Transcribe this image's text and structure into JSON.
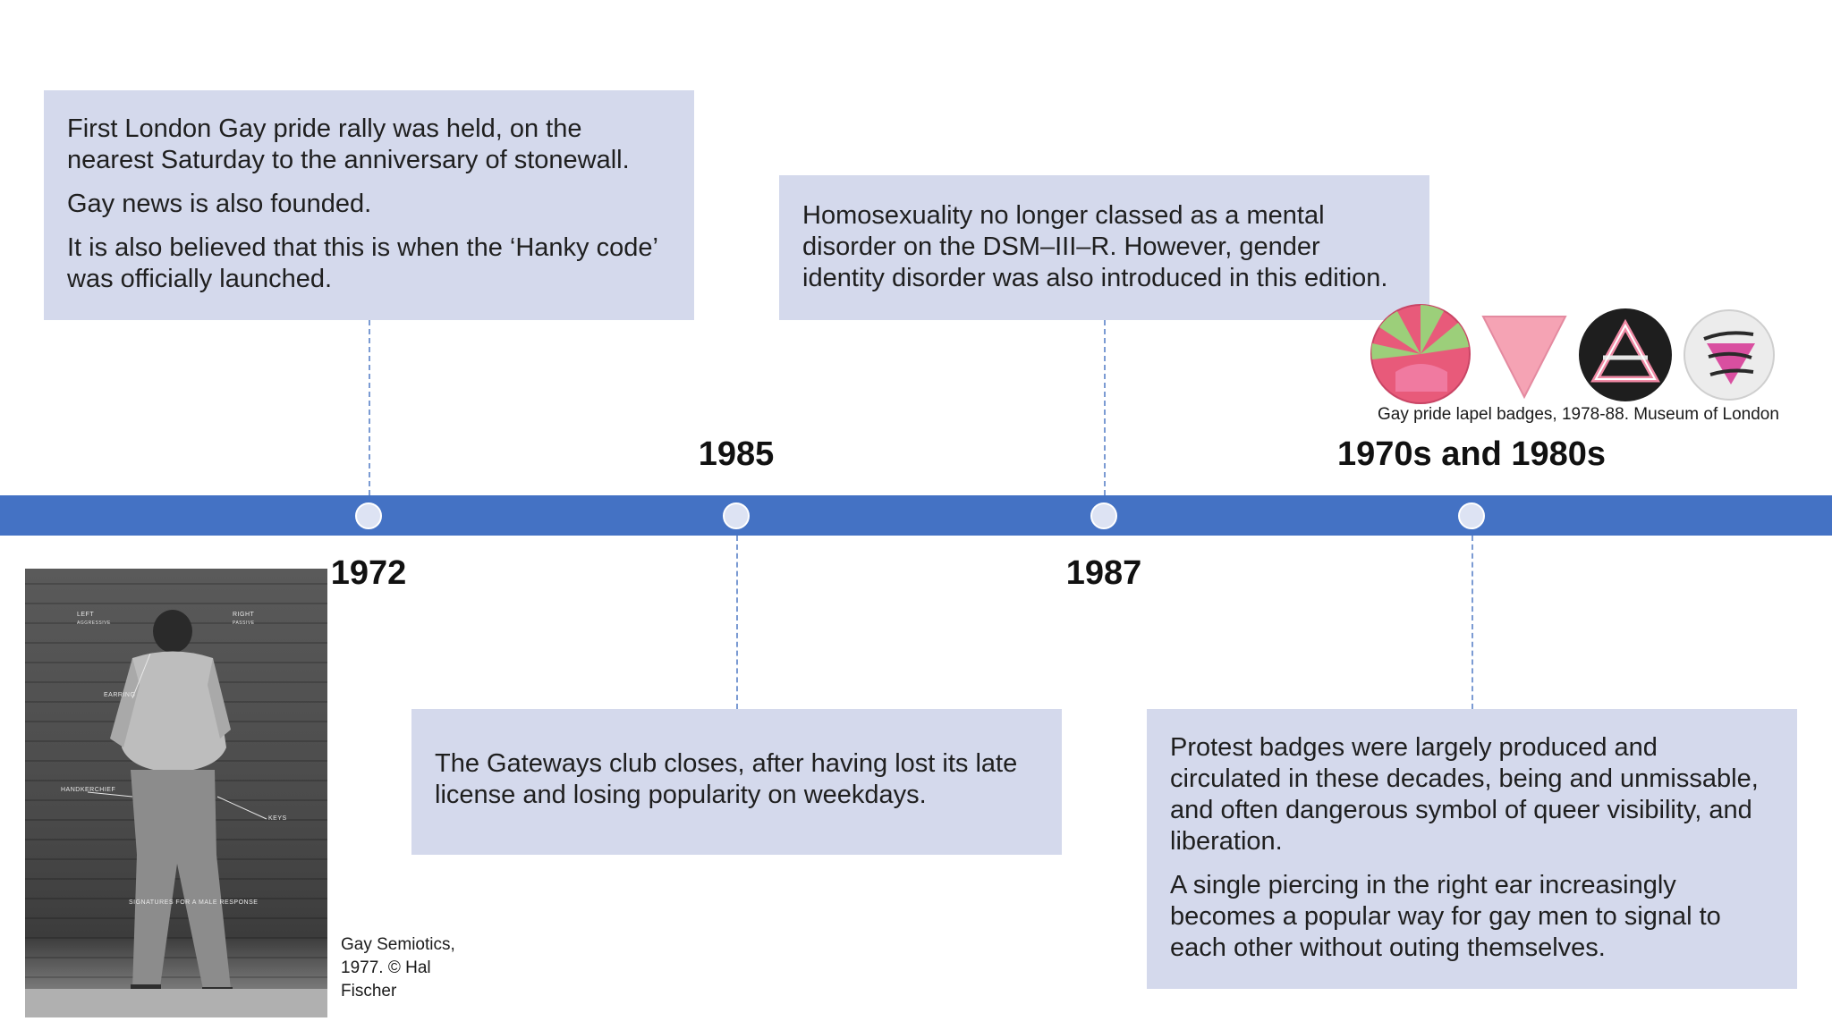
{
  "events": [
    {
      "id": "1972",
      "year": "1972",
      "paragraphs": [
        "First London Gay pride rally was held, on the nearest Saturday to the anniversary of stonewall.",
        "Gay news is also founded.",
        "It is also believed that this is when the ‘Hanky code’ was officially launched."
      ]
    },
    {
      "id": "1985",
      "year": "1985",
      "paragraphs": [
        "The Gateways club closes, after having lost its late license and losing popularity on weekdays."
      ]
    },
    {
      "id": "1987",
      "year": "1987",
      "paragraphs": [
        "Homosexuality no longer classed as a mental disorder on the DSM–III–R. However, gender identity disorder was also introduced in this edition."
      ]
    },
    {
      "id": "1970s-1980s",
      "year": "1970s and 1980s",
      "paragraphs": [
        "Protest badges were largely produced and circulated in these decades, being and unmissable, and often dangerous symbol of queer visibility, and liberation.",
        "A single piercing in the right ear increasingly becomes a popular way for gay men to signal to each other without outing themselves."
      ]
    }
  ],
  "photo": {
    "caption": "Gay Semiotics, 1977. © Hal Fischer",
    "labels": {
      "left": "LEFT",
      "left_sub": "AGGRESSIVE",
      "right": "RIGHT",
      "right_sub": "PASSIVE",
      "earring": "EARRING",
      "handkerchief": "HANDKERCHIEF",
      "keys": "KEYS",
      "signatures": "SIGNATURES FOR A MALE RESPONSE"
    }
  },
  "badges": {
    "caption": "Gay pride lapel badges, 1978-88. Museum of London",
    "items": [
      "sun-badge",
      "pink-triangle-badge",
      "triangle-symbol-badge",
      "scrap-the-section-badge"
    ],
    "badge_text": "Scrap the Section!"
  },
  "colors": {
    "timeline_bar": "#4472c4",
    "box_fill": "#d4d9ec",
    "connector": "#7b9bd3",
    "dot": "#dde3f3"
  }
}
